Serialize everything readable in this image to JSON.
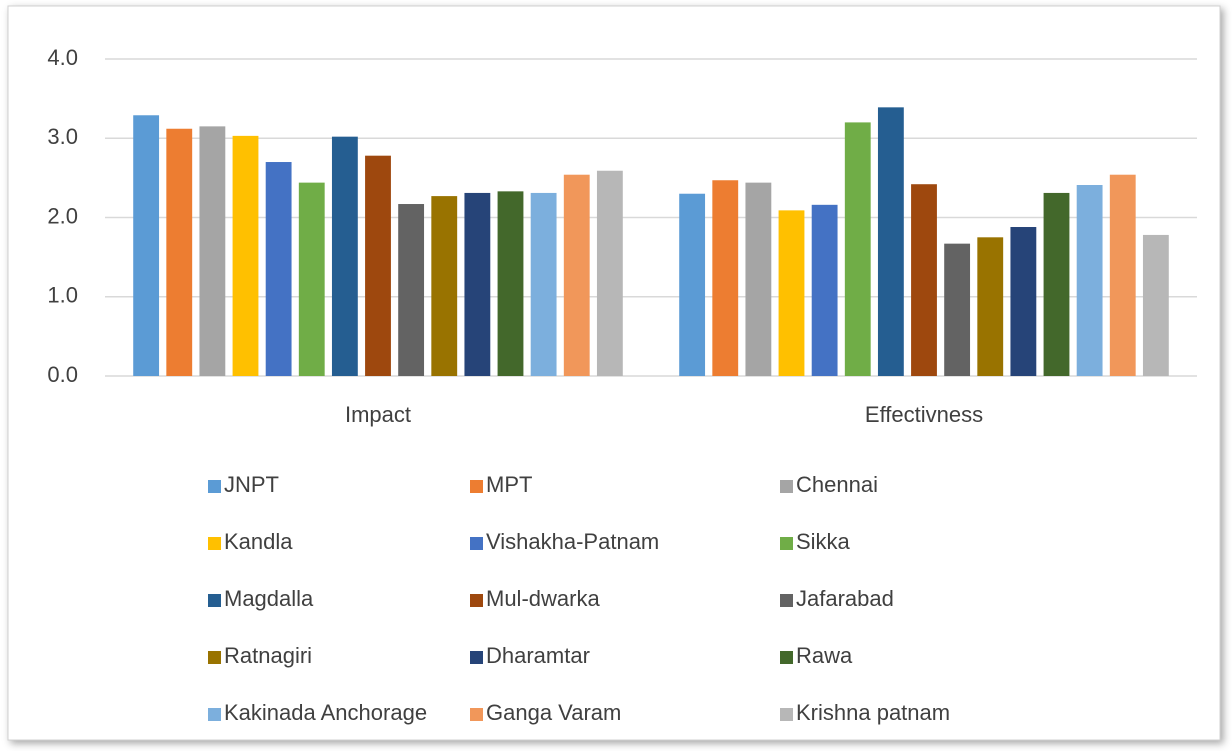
{
  "chart_data": {
    "type": "bar",
    "categories": [
      "Impact",
      "Effectivness"
    ],
    "ylim": [
      0,
      4
    ],
    "yticks": [
      {
        "value": 0,
        "label": "0.0"
      },
      {
        "value": 1,
        "label": "1.0"
      },
      {
        "value": 2,
        "label": "2.0"
      },
      {
        "value": 3,
        "label": "3.0"
      },
      {
        "value": 4,
        "label": "4.0"
      }
    ],
    "grid": true,
    "legend": "bottom",
    "series": [
      {
        "name": "JNPT",
        "color": "#5b9bd5",
        "values": [
          3.29,
          2.3
        ]
      },
      {
        "name": "MPT",
        "color": "#ed7d31",
        "values": [
          3.12,
          2.47
        ]
      },
      {
        "name": "Chennai",
        "color": "#a5a5a5",
        "values": [
          3.15,
          2.44
        ]
      },
      {
        "name": "Kandla",
        "color": "#ffc000",
        "values": [
          3.03,
          2.09
        ]
      },
      {
        "name": "Vishakha-Patnam",
        "color": "#4472c4",
        "values": [
          2.7,
          2.16
        ]
      },
      {
        "name": "Sikka",
        "color": "#70ad47",
        "values": [
          2.44,
          3.2
        ]
      },
      {
        "name": "Magdalla",
        "color": "#255e91",
        "values": [
          3.02,
          3.39
        ]
      },
      {
        "name": "Mul-dwarka",
        "color": "#9e480e",
        "values": [
          2.78,
          2.42
        ]
      },
      {
        "name": "Jafarabad",
        "color": "#636363",
        "values": [
          2.17,
          1.67
        ]
      },
      {
        "name": "Ratnagiri",
        "color": "#997300",
        "values": [
          2.27,
          1.75
        ]
      },
      {
        "name": "Dharamtar",
        "color": "#264478",
        "values": [
          2.31,
          1.88
        ]
      },
      {
        "name": "Rawa",
        "color": "#43682b",
        "values": [
          2.33,
          2.31
        ]
      },
      {
        "name": "Kakinada Anchorage",
        "color": "#7cafdd",
        "values": [
          2.31,
          2.41
        ]
      },
      {
        "name": "Ganga Varam",
        "color": "#f1975a",
        "values": [
          2.54,
          2.54
        ]
      },
      {
        "name": "Krishna patnam",
        "color": "#b7b7b7",
        "values": [
          2.59,
          1.78
        ]
      }
    ]
  }
}
